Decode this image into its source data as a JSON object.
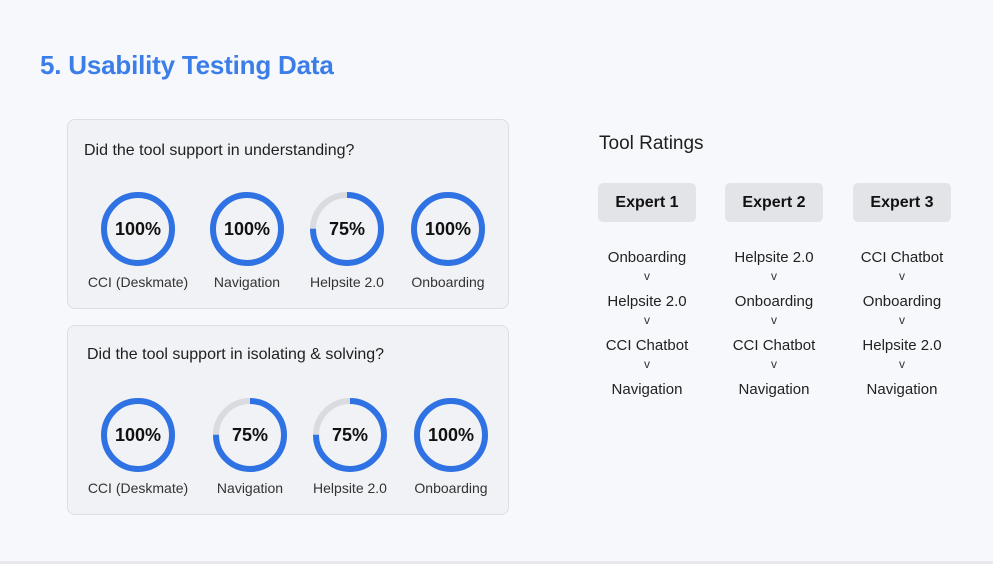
{
  "title": "5. Usability Testing Data",
  "ring_color": "#2f72e4",
  "ring_track_color": "#d9dbe0",
  "cards": [
    {
      "question": "Did the tool support in understanding?",
      "items": [
        {
          "label": "CCI (Deskmate)",
          "value": "100%",
          "percent": 100
        },
        {
          "label": "Navigation",
          "value": "100%",
          "percent": 100
        },
        {
          "label": "Helpsite 2.0",
          "value": "75%",
          "percent": 75
        },
        {
          "label": "Onboarding",
          "value": "100%",
          "percent": 100
        }
      ]
    },
    {
      "question": "Did the tool support in isolating & solving?",
      "items": [
        {
          "label": "CCI (Deskmate)",
          "value": "100%",
          "percent": 100
        },
        {
          "label": "Navigation",
          "value": "75%",
          "percent": 75
        },
        {
          "label": "Helpsite 2.0",
          "value": "75%",
          "percent": 75
        },
        {
          "label": "Onboarding",
          "value": "100%",
          "percent": 100
        }
      ]
    }
  ],
  "ratings": {
    "title": "Tool Ratings",
    "separator": "v",
    "experts": [
      {
        "name": "Expert 1",
        "ranking": [
          "Onboarding",
          "Helpsite 2.0",
          "CCI Chatbot",
          "Navigation"
        ]
      },
      {
        "name": "Expert 2",
        "ranking": [
          "Helpsite 2.0",
          "Onboarding",
          "CCI Chatbot",
          "Navigation"
        ]
      },
      {
        "name": "Expert 3",
        "ranking": [
          "CCI Chatbot",
          "Onboarding",
          "Helpsite 2.0",
          "Navigation"
        ]
      }
    ]
  }
}
